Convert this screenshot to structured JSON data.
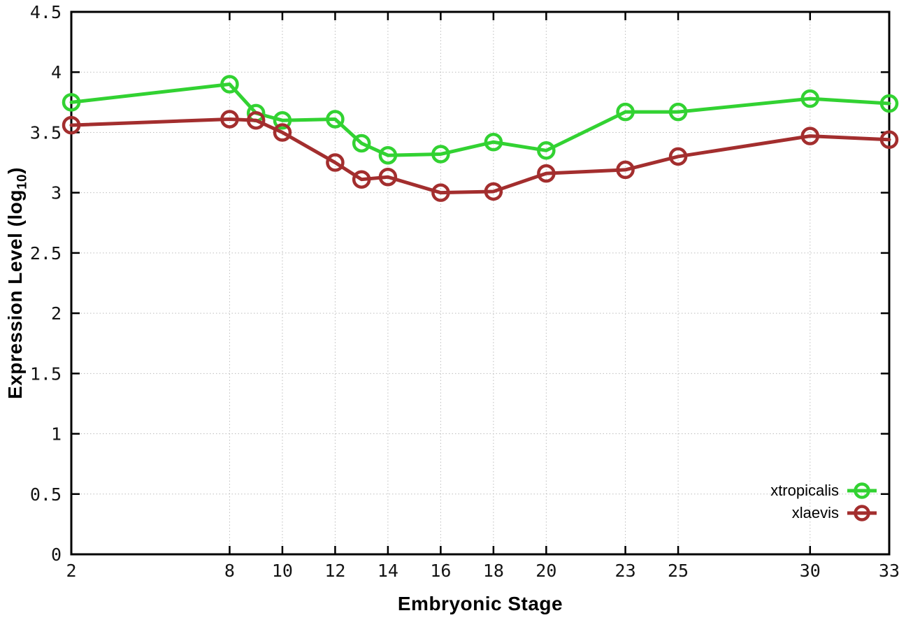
{
  "chart_data": {
    "type": "line",
    "title": "",
    "xlabel": "Embryonic Stage",
    "ylabel": "Expression Level (log10)",
    "ylabel_parts": {
      "prefix": "Expression Level (log",
      "sub": "10",
      "suffix": ")"
    },
    "x": [
      2,
      8,
      9,
      10,
      12,
      13,
      14,
      16,
      18,
      20,
      23,
      25,
      30,
      33
    ],
    "xticks": [
      2,
      8,
      10,
      12,
      14,
      16,
      18,
      20,
      23,
      25,
      30,
      33
    ],
    "yticks": [
      0,
      0.5,
      1,
      1.5,
      2,
      2.5,
      3,
      3.5,
      4,
      4.5
    ],
    "ytick_labels": [
      "0",
      "0.5",
      "1",
      "1.5",
      "2",
      "2.5",
      "3",
      "3.5",
      "4",
      "4.5"
    ],
    "xlim": [
      2,
      33
    ],
    "ylim": [
      0,
      4.5
    ],
    "grid": true,
    "legend_position": "bottom-right",
    "series": [
      {
        "name": "xtropicalis",
        "color": "#32d232",
        "values": [
          3.75,
          3.9,
          3.66,
          3.6,
          3.61,
          3.41,
          3.31,
          3.32,
          3.42,
          3.35,
          3.67,
          3.67,
          3.78,
          3.74
        ]
      },
      {
        "name": "xlaevis",
        "color": "#a32e2e",
        "values": [
          3.56,
          3.61,
          3.6,
          3.5,
          3.25,
          3.11,
          3.13,
          3.0,
          3.01,
          3.16,
          3.19,
          3.3,
          3.47,
          3.44
        ]
      }
    ],
    "colors": {
      "border": "#000000",
      "grid": "#bdbdbd",
      "tick_text": "#141414"
    }
  }
}
